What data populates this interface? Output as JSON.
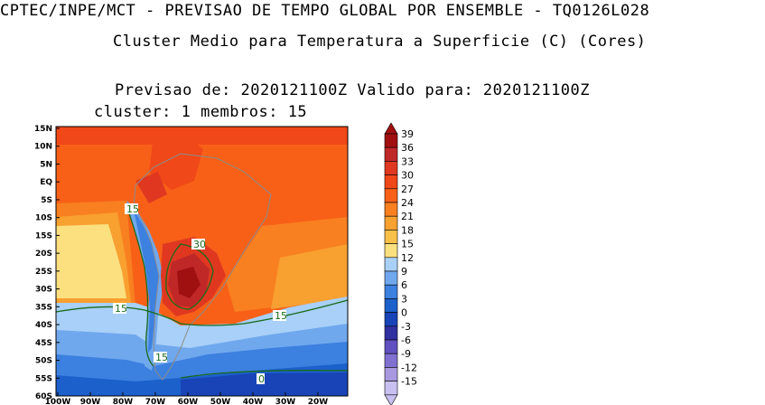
{
  "header": {
    "line1": "CPTEC/INPE/MCT - PREVISAO DE TEMPO GLOBAL POR ENSEMBLE - TQ0126L028",
    "line2": "Cluster Medio para Temperatura a Superficie (C) (Cores)",
    "line3": "Previsao de: 2020121100Z   Valido para: 2020121100Z",
    "line4": "cluster: 1  membros: 15"
  },
  "map": {
    "lat_labels": [
      "15N",
      "10N",
      "5N",
      "EQ",
      "5S",
      "10S",
      "15S",
      "20S",
      "25S",
      "30S",
      "35S",
      "40S",
      "45S",
      "50S",
      "55S",
      "60S"
    ],
    "lon_labels": [
      "100W",
      "90W",
      "80W",
      "70W",
      "60W",
      "50W",
      "40W",
      "30W",
      "20W"
    ],
    "contour_labels": [
      "15",
      "15",
      "15",
      "15",
      "30",
      "0"
    ]
  },
  "colorbar": {
    "labels": [
      "39",
      "36",
      "33",
      "30",
      "27",
      "24",
      "21",
      "18",
      "15",
      "12",
      "9",
      "6",
      "3",
      "0",
      "-3",
      "-6",
      "-9",
      "-12",
      "-15"
    ],
    "colors": [
      "#a01010",
      "#c02828",
      "#e03820",
      "#f04818",
      "#f86018",
      "#f88020",
      "#f8a030",
      "#f8c048",
      "#fce080",
      "#a8d0f8",
      "#70a8ee",
      "#3c80e0",
      "#1c60cc",
      "#1844b8",
      "#3030a0",
      "#6050c0",
      "#8070d0",
      "#a898e0",
      "#c8c0f0"
    ]
  }
}
